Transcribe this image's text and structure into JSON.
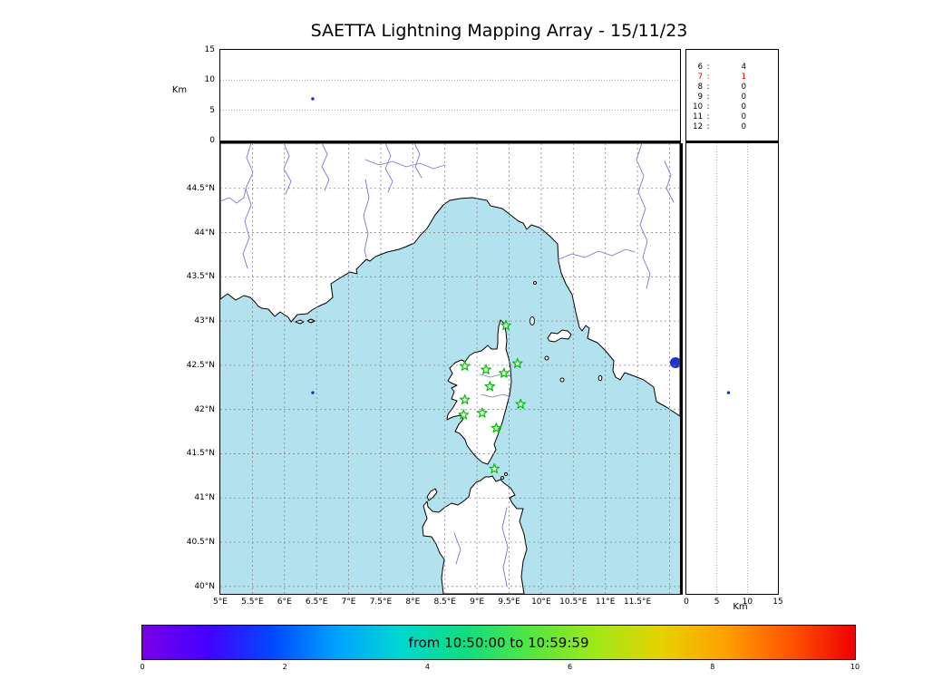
{
  "title": "SAETTA Lightning Mapping Array - 15/11/23",
  "colors": {
    "sea": "#b2e2ee",
    "land": "#ffffff",
    "coast": "#000000",
    "river": "#7878cc",
    "grid": "#888888",
    "station_green": "#00c000",
    "source_blue": "#2233bb",
    "lake_blue": "#2233cc",
    "highlight_red": "#dd0000"
  },
  "altitude_panel": {
    "ylabel": "Km",
    "range_km": [
      0,
      15
    ],
    "ticks": [
      {
        "label": "15",
        "km": 15
      },
      {
        "label": "10",
        "km": 10
      },
      {
        "label": "5",
        "km": 5
      },
      {
        "label": "0",
        "km": 0
      }
    ],
    "grid_km": [
      5,
      10
    ]
  },
  "station_stats": {
    "rows": [
      {
        "stations": "6",
        "count": "4",
        "highlight": false
      },
      {
        "stations": "7",
        "count": "1",
        "highlight": true
      },
      {
        "stations": "8",
        "count": "0",
        "highlight": false
      },
      {
        "stations": "9",
        "count": "0",
        "highlight": false
      },
      {
        "stations": "10",
        "count": "0",
        "highlight": false
      },
      {
        "stations": "11",
        "count": "0",
        "highlight": false
      },
      {
        "stations": "12",
        "count": "0",
        "highlight": false
      }
    ]
  },
  "map": {
    "extent": {
      "lon_min": 5.0,
      "lon_max": 12.16,
      "lat_min": 39.92,
      "lat_max": 45.01
    },
    "lat_ticks": [
      {
        "label": "44.5°N",
        "lat": 44.5
      },
      {
        "label": "44°N",
        "lat": 44.0
      },
      {
        "label": "43.5°N",
        "lat": 43.5
      },
      {
        "label": "43°N",
        "lat": 43.0
      },
      {
        "label": "42.5°N",
        "lat": 42.5
      },
      {
        "label": "42°N",
        "lat": 42.0
      },
      {
        "label": "41.5°N",
        "lat": 41.5
      },
      {
        "label": "41°N",
        "lat": 41.0
      },
      {
        "label": "40.5°N",
        "lat": 40.5
      },
      {
        "label": "40°N",
        "lat": 40.0
      }
    ],
    "lon_ticks": [
      {
        "label": "5°E",
        "lon": 5.0
      },
      {
        "label": "5.5°E",
        "lon": 5.5
      },
      {
        "label": "6°E",
        "lon": 6.0
      },
      {
        "label": "6.5°E",
        "lon": 6.5
      },
      {
        "label": "7°E",
        "lon": 7.0
      },
      {
        "label": "7.5°E",
        "lon": 7.5
      },
      {
        "label": "8°E",
        "lon": 8.0
      },
      {
        "label": "8.5°E",
        "lon": 8.5
      },
      {
        "label": "9°E",
        "lon": 9.0
      },
      {
        "label": "9.5°E",
        "lon": 9.5
      },
      {
        "label": "10°E",
        "lon": 10.0
      },
      {
        "label": "10.5°E",
        "lon": 10.5
      },
      {
        "label": "11°E",
        "lon": 11.0
      },
      {
        "label": "11.5°E",
        "lon": 11.5
      }
    ],
    "stations_lonlat": [
      [
        9.45,
        42.95
      ],
      [
        8.81,
        42.49
      ],
      [
        9.14,
        42.45
      ],
      [
        9.42,
        42.41
      ],
      [
        9.63,
        42.52
      ],
      [
        9.2,
        42.26
      ],
      [
        8.81,
        42.11
      ],
      [
        9.68,
        42.06
      ],
      [
        8.79,
        41.94
      ],
      [
        9.08,
        41.96
      ],
      [
        9.3,
        41.79
      ],
      [
        9.27,
        41.33
      ]
    ]
  },
  "right_panel": {
    "xlabel": "Km",
    "range_km": [
      0,
      15
    ],
    "ticks": [
      {
        "label": "0",
        "km": 0
      },
      {
        "label": "5",
        "km": 5
      },
      {
        "label": "10",
        "km": 10
      },
      {
        "label": "15",
        "km": 15
      }
    ],
    "grid_km": [
      5,
      10
    ]
  },
  "lightning_source": {
    "lon": 6.44,
    "lat": 42.19,
    "alt_km": 6.9
  },
  "colorbar": {
    "label": "from 10:50:00 to 10:59:59",
    "ticks": [
      "0",
      "2",
      "4",
      "6",
      "8",
      "10"
    ],
    "range": [
      0,
      10
    ],
    "gradient": [
      "#7a00e8",
      "#4400ff",
      "#0048ff",
      "#00a2ff",
      "#00d8d0",
      "#10dd80",
      "#55e640",
      "#a0e818",
      "#e6d200",
      "#ffa000",
      "#ff5500",
      "#ee0000"
    ]
  },
  "chart_data": [
    {
      "type": "scatter",
      "subplot": "altitude_vs_longitude",
      "xlim": [
        5.0,
        12.16
      ],
      "ylim": [
        0,
        15
      ],
      "ylabel": "Km",
      "yticks": [
        0,
        5,
        10,
        15
      ],
      "grid_km": [
        5,
        10
      ],
      "points": [
        {
          "lon": 6.44,
          "alt_km": 6.9
        }
      ]
    },
    {
      "type": "table",
      "subplot": "sources_per_station_count",
      "columns": [
        "num_stations",
        "num_sources"
      ],
      "rows": [
        [
          6,
          4
        ],
        [
          7,
          1
        ],
        [
          8,
          0
        ],
        [
          9,
          0
        ],
        [
          10,
          0
        ],
        [
          11,
          0
        ],
        [
          12,
          0
        ]
      ],
      "highlighted_row": [
        7,
        1
      ]
    },
    {
      "type": "scatter",
      "subplot": "map_lat_vs_lon",
      "title": "SAETTA Lightning Mapping Array - 15/11/23",
      "xlim": [
        5.0,
        12.16
      ],
      "ylim": [
        39.92,
        45.01
      ],
      "xticks": [
        "5°E",
        "5.5°E",
        "6°E",
        "6.5°E",
        "7°E",
        "7.5°E",
        "8°E",
        "8.5°E",
        "9°E",
        "9.5°E",
        "10°E",
        "10.5°E",
        "11°E",
        "11.5°E"
      ],
      "yticks": [
        "40°N",
        "40.5°N",
        "41°N",
        "41.5°N",
        "42°N",
        "42.5°N",
        "43°N",
        "43.5°N",
        "44°N",
        "44.5°N"
      ],
      "grid": true,
      "lightning_points": [
        {
          "lon": 6.44,
          "lat": 42.19
        }
      ],
      "station_markers_lonlat": [
        [
          9.45,
          42.95
        ],
        [
          8.81,
          42.49
        ],
        [
          9.14,
          42.45
        ],
        [
          9.42,
          42.41
        ],
        [
          9.63,
          42.52
        ],
        [
          9.2,
          42.26
        ],
        [
          8.81,
          42.11
        ],
        [
          9.68,
          42.06
        ],
        [
          8.79,
          41.94
        ],
        [
          9.08,
          41.96
        ],
        [
          9.3,
          41.79
        ],
        [
          9.27,
          41.33
        ]
      ]
    },
    {
      "type": "scatter",
      "subplot": "latitude_vs_altitude",
      "xlim": [
        0,
        15
      ],
      "xlabel": "Km",
      "xticks": [
        0,
        5,
        10,
        15
      ],
      "ylim": [
        39.92,
        45.01
      ],
      "grid_km": [
        5,
        10
      ],
      "points": [
        {
          "alt_km": 6.9,
          "lat": 42.19
        }
      ]
    },
    {
      "type": "colorbar",
      "label": "from 10:50:00 to 10:59:59",
      "ticks": [
        0,
        2,
        4,
        6,
        8,
        10
      ],
      "orientation": "horizontal"
    }
  ]
}
